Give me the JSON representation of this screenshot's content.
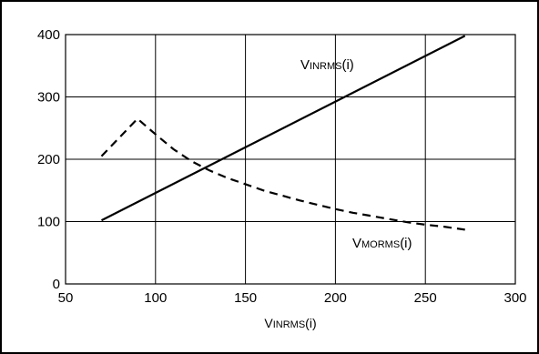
{
  "chart_data": {
    "type": "line",
    "xlim": [
      50,
      300
    ],
    "ylim": [
      0,
      400
    ],
    "x_ticks": [
      50,
      100,
      150,
      200,
      250,
      300
    ],
    "y_ticks": [
      0,
      100,
      200,
      300,
      400
    ],
    "grid": true,
    "xlabel": {
      "first": "V",
      "rest": "INRMS",
      "suffix": "(i)"
    },
    "series": [
      {
        "label": {
          "first": "V",
          "rest": "INRMS",
          "suffix": "(i)"
        },
        "style": "solid",
        "color": "#000000",
        "x": [
          70,
          272
        ],
        "y": [
          102,
          398
        ]
      },
      {
        "label": {
          "first": "V",
          "rest": "MORMS",
          "suffix": "(i)"
        },
        "style": "dashed",
        "color": "#000000",
        "x": [
          70,
          80,
          90,
          100,
          110,
          120,
          130,
          140,
          150,
          160,
          170,
          180,
          190,
          200,
          210,
          220,
          230,
          240,
          250,
          260,
          272
        ],
        "y": [
          205,
          235,
          265,
          240,
          216,
          197,
          182,
          170,
          160,
          150,
          142,
          134,
          127,
          120,
          114,
          109,
          104,
          99,
          95,
          92,
          87
        ]
      }
    ]
  }
}
